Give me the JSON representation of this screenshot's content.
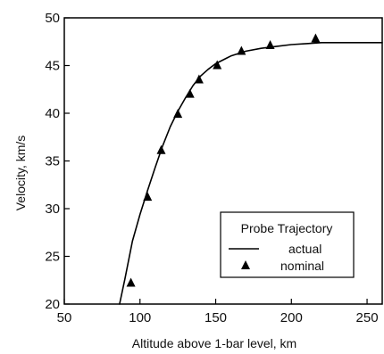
{
  "chart_data": {
    "type": "line",
    "xlabel": "Altitude above 1-bar level, km",
    "ylabel": "Velocity, km/s",
    "xlim": [
      50,
      260
    ],
    "ylim": [
      20,
      50
    ],
    "x_ticks": [
      50,
      100,
      150,
      200,
      250
    ],
    "y_ticks": [
      20,
      25,
      30,
      35,
      40,
      45,
      50
    ],
    "grid": false,
    "legend": {
      "title": "Probe Trajectory",
      "placement": "bottom-right",
      "entries": [
        {
          "label": "actual",
          "marker": "line"
        },
        {
          "label": "nominal",
          "marker": "triangle"
        }
      ]
    },
    "series": [
      {
        "name": "actual",
        "style": "line",
        "color": "#000000",
        "x": [
          86.5,
          90,
          95,
          100,
          105,
          110,
          115,
          120,
          125,
          130,
          135,
          140,
          145,
          150,
          160,
          170,
          180,
          190,
          200,
          210,
          220,
          230,
          240,
          250,
          260
        ],
        "y": [
          20.0,
          22.6,
          26.6,
          29.4,
          31.9,
          34.3,
          36.6,
          38.6,
          40.2,
          41.6,
          42.9,
          43.9,
          44.6,
          45.2,
          46.0,
          46.5,
          46.8,
          47.0,
          47.2,
          47.3,
          47.4,
          47.4,
          47.4,
          47.4,
          47.4
        ]
      },
      {
        "name": "nominal",
        "style": "triangle",
        "color": "#000000",
        "x": [
          94,
          105,
          114,
          125,
          133,
          139,
          151,
          167,
          186,
          216
        ],
        "y": [
          22.2,
          31.2,
          36.1,
          39.9,
          42.0,
          43.5,
          45.0,
          46.5,
          47.1,
          47.8
        ]
      }
    ]
  }
}
